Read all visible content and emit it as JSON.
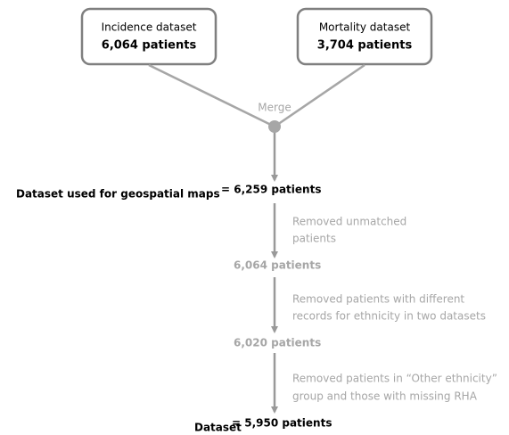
{
  "nodes": [
    {
      "label": "Incidence dataset",
      "count": "6,064 patients"
    },
    {
      "label": "Mortality dataset",
      "count": "3,704 patients"
    }
  ],
  "merge": "Merge",
  "steps": [
    {
      "label": "Dataset used for geospatial maps",
      "count": "= 6,259 patients"
    },
    {
      "note": [
        "Removed unmatched",
        "patients"
      ],
      "count": "6,064 patients"
    },
    {
      "note": [
        "Removed patients with different",
        "records for ethnicity in two datasets"
      ],
      "count": "6,020 patients"
    },
    {
      "note": [
        "Removed patients in “Other ethnicity”",
        "group and those with missing RHA"
      ],
      "label": "Dataset",
      "count": "= 5,950 patients"
    }
  ]
}
